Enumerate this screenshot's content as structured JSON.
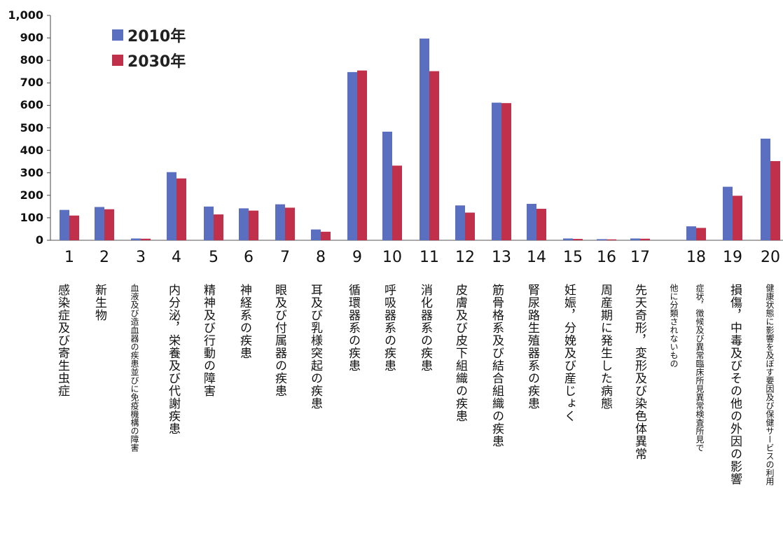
{
  "chart_data": {
    "type": "bar",
    "categories": [
      "1",
      "2",
      "3",
      "4",
      "5",
      "6",
      "7",
      "8",
      "9",
      "10",
      "11",
      "12",
      "13",
      "14",
      "15",
      "16",
      "17",
      "18",
      "19",
      "20"
    ],
    "category_labels": [
      "感染症及び寄生虫症",
      "新生物",
      "血液及び造血器の疾患並びに免疫機構の障害",
      "内分泌，栄養及び代謝疾患",
      "精神及び行動の障害",
      "神経系の疾患",
      "眼及び付属器の疾患",
      "耳及び乳様突起の疾患",
      "循環器系の疾患",
      "呼吸器系の疾患",
      "消化器系の疾患",
      "皮膚及び皮下組織の疾患",
      "筋骨格系及び結合組織の疾患",
      "腎尿路生殖器系の疾患",
      "妊娠，分娩及び産じょく",
      "周産期に発生した病態",
      "先天奇形，変形及び染色体異常",
      "症状，徴候及び異常臨床所見異常検査所見で他に分類されないもの",
      "損傷，中毒及びその他の外因の影響",
      "健康状態に影響を及ぼす要因及び保健サービスの利用"
    ],
    "series": [
      {
        "name": "2010年",
        "color": "#5a6fc0",
        "values": [
          135,
          148,
          8,
          303,
          150,
          142,
          160,
          48,
          748,
          483,
          897,
          155,
          612,
          162,
          8,
          5,
          8,
          62,
          238,
          452
        ]
      },
      {
        "name": "2030年",
        "color": "#c0304a",
        "values": [
          110,
          138,
          7,
          275,
          115,
          132,
          145,
          38,
          755,
          332,
          752,
          123,
          610,
          140,
          6,
          4,
          7,
          55,
          198,
          352
        ]
      }
    ],
    "yticks": [
      "0",
      "100",
      "200",
      "300",
      "400",
      "500",
      "600",
      "700",
      "800",
      "900",
      "1,000"
    ],
    "ylim": [
      0,
      1000
    ],
    "legend_position": "top-left",
    "grid": false
  }
}
